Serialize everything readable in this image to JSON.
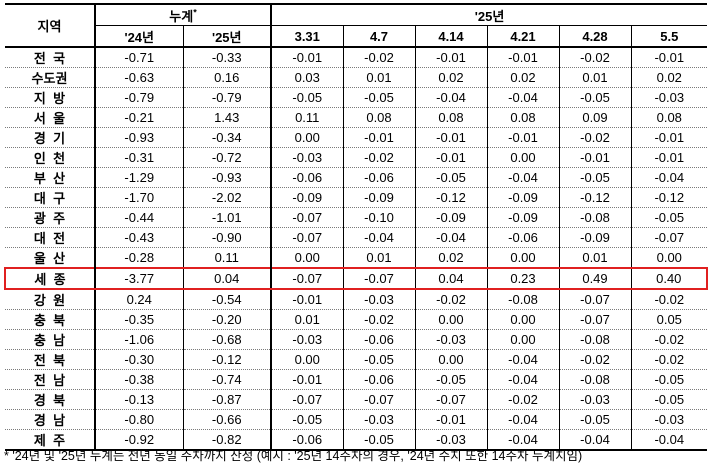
{
  "header": {
    "region": "지역",
    "cumulative": "누계",
    "cumulative_mark": "*",
    "cum_years": [
      "'24년",
      "'25년"
    ],
    "year_label": "'25년",
    "weeks": [
      "3.31",
      "4.7",
      "4.14",
      "4.21",
      "4.28",
      "5.5"
    ]
  },
  "rows": [
    {
      "region": "전  국",
      "c24": "-0.71",
      "c25": "-0.33",
      "w": [
        "-0.01",
        "-0.02",
        "-0.01",
        "-0.01",
        "-0.02",
        "-0.01"
      ]
    },
    {
      "region": "수도권",
      "c24": "-0.63",
      "c25": "0.16",
      "w": [
        "0.03",
        "0.01",
        "0.02",
        "0.02",
        "0.01",
        "0.02"
      ]
    },
    {
      "region": "지  방",
      "c24": "-0.79",
      "c25": "-0.79",
      "w": [
        "-0.05",
        "-0.05",
        "-0.04",
        "-0.04",
        "-0.05",
        "-0.03"
      ]
    },
    {
      "region": "서  울",
      "c24": "-0.21",
      "c25": "1.43",
      "w": [
        "0.11",
        "0.08",
        "0.08",
        "0.08",
        "0.09",
        "0.08"
      ]
    },
    {
      "region": "경  기",
      "c24": "-0.93",
      "c25": "-0.34",
      "w": [
        "0.00",
        "-0.01",
        "-0.01",
        "-0.01",
        "-0.02",
        "-0.01"
      ]
    },
    {
      "region": "인  천",
      "c24": "-0.31",
      "c25": "-0.72",
      "w": [
        "-0.03",
        "-0.02",
        "-0.01",
        "0.00",
        "-0.01",
        "-0.01"
      ]
    },
    {
      "region": "부  산",
      "c24": "-1.29",
      "c25": "-0.93",
      "w": [
        "-0.06",
        "-0.06",
        "-0.05",
        "-0.04",
        "-0.05",
        "-0.04"
      ]
    },
    {
      "region": "대  구",
      "c24": "-1.70",
      "c25": "-2.02",
      "w": [
        "-0.09",
        "-0.09",
        "-0.12",
        "-0.09",
        "-0.12",
        "-0.12"
      ]
    },
    {
      "region": "광  주",
      "c24": "-0.44",
      "c25": "-1.01",
      "w": [
        "-0.07",
        "-0.10",
        "-0.09",
        "-0.09",
        "-0.08",
        "-0.05"
      ]
    },
    {
      "region": "대  전",
      "c24": "-0.43",
      "c25": "-0.90",
      "w": [
        "-0.07",
        "-0.04",
        "-0.04",
        "-0.06",
        "-0.09",
        "-0.07"
      ]
    },
    {
      "region": "울  산",
      "c24": "-0.28",
      "c25": "0.11",
      "w": [
        "0.00",
        "0.01",
        "0.02",
        "0.00",
        "0.01",
        "0.00"
      ]
    },
    {
      "region": "세  종",
      "c24": "-3.77",
      "c25": "0.04",
      "w": [
        "-0.07",
        "-0.07",
        "0.04",
        "0.23",
        "0.49",
        "0.40"
      ],
      "highlight": true
    },
    {
      "region": "강  원",
      "c24": "0.24",
      "c25": "-0.54",
      "w": [
        "-0.01",
        "-0.03",
        "-0.02",
        "-0.08",
        "-0.07",
        "-0.02"
      ]
    },
    {
      "region": "충  북",
      "c24": "-0.35",
      "c25": "-0.20",
      "w": [
        "0.01",
        "-0.02",
        "0.00",
        "0.00",
        "-0.07",
        "0.05"
      ]
    },
    {
      "region": "충  남",
      "c24": "-1.06",
      "c25": "-0.68",
      "w": [
        "-0.03",
        "-0.06",
        "-0.03",
        "0.00",
        "-0.08",
        "-0.02"
      ]
    },
    {
      "region": "전  북",
      "c24": "-0.30",
      "c25": "-0.12",
      "w": [
        "0.00",
        "-0.05",
        "0.00",
        "-0.04",
        "-0.02",
        "-0.02"
      ]
    },
    {
      "region": "전  남",
      "c24": "-0.38",
      "c25": "-0.74",
      "w": [
        "-0.01",
        "-0.06",
        "-0.05",
        "-0.04",
        "-0.08",
        "-0.05"
      ]
    },
    {
      "region": "경  북",
      "c24": "-0.13",
      "c25": "-0.87",
      "w": [
        "-0.07",
        "-0.07",
        "-0.07",
        "-0.02",
        "-0.03",
        "-0.05"
      ]
    },
    {
      "region": "경  남",
      "c24": "-0.80",
      "c25": "-0.66",
      "w": [
        "-0.05",
        "-0.03",
        "-0.01",
        "-0.04",
        "-0.05",
        "-0.03"
      ]
    },
    {
      "region": "제  주",
      "c24": "-0.92",
      "c25": "-0.82",
      "w": [
        "-0.06",
        "-0.05",
        "-0.03",
        "-0.04",
        "-0.04",
        "-0.04"
      ]
    }
  ],
  "footnote": "* '24년 및 '25년 누계는 전년 동일 주차까지 산정 (예시 : '25년 14주차의 경우, '24년 수치 또한 14주차 누계치임)",
  "colors": {
    "highlight": "#e02020"
  }
}
